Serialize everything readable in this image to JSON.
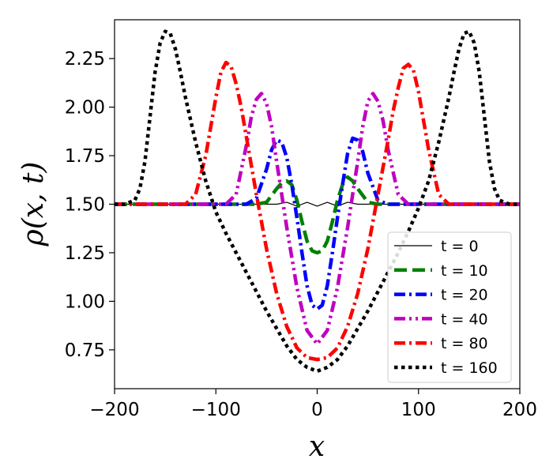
{
  "chart_data": {
    "type": "line",
    "xlabel": "x",
    "ylabel": "ρ(x, t)",
    "xlim": [
      -200,
      200
    ],
    "ylim": [
      0.55,
      2.45
    ],
    "xticks": [
      -200,
      -100,
      0,
      100,
      200
    ],
    "xtick_labels": [
      "−200",
      "−100",
      "0",
      "100",
      "200"
    ],
    "yticks": [
      0.75,
      1.0,
      1.25,
      1.5,
      1.75,
      2.0,
      2.25
    ],
    "ytick_labels": [
      "0.75",
      "1.00",
      "1.25",
      "1.50",
      "1.75",
      "2.00",
      "2.25"
    ],
    "grid": false,
    "legend_position": "lower-right",
    "series": [
      {
        "name": "t = 0",
        "color": "#000000",
        "style": "solid",
        "x": [
          -200,
          -160,
          -120,
          -80,
          -60,
          -40,
          -30,
          -20,
          -10,
          0,
          10,
          20,
          30,
          40,
          60,
          80,
          120,
          160,
          200
        ],
        "y": [
          1.5,
          1.5,
          1.5,
          1.5,
          1.5,
          1.5,
          1.51,
          1.49,
          1.51,
          1.49,
          1.51,
          1.49,
          1.51,
          1.5,
          1.5,
          1.5,
          1.5,
          1.5,
          1.5
        ]
      },
      {
        "name": "t = 10",
        "color": "#008000",
        "style": "dashed",
        "x": [
          -200,
          -100,
          -60,
          -50,
          -40,
          -35,
          -30,
          -25,
          -20,
          -15,
          -10,
          -5,
          0,
          5,
          10,
          15,
          20,
          25,
          30,
          35,
          40,
          50,
          60,
          100,
          200
        ],
        "y": [
          1.5,
          1.5,
          1.5,
          1.51,
          1.58,
          1.61,
          1.62,
          1.6,
          1.52,
          1.41,
          1.31,
          1.26,
          1.25,
          1.26,
          1.31,
          1.41,
          1.52,
          1.6,
          1.64,
          1.62,
          1.58,
          1.51,
          1.5,
          1.5,
          1.5
        ]
      },
      {
        "name": "t = 20",
        "color": "#0000ff",
        "style": "dashdot",
        "x": [
          -200,
          -100,
          -70,
          -60,
          -50,
          -45,
          -40,
          -35,
          -30,
          -25,
          -20,
          -15,
          -10,
          -5,
          0,
          5,
          10,
          15,
          20,
          25,
          30,
          35,
          40,
          45,
          50,
          60,
          70,
          100,
          200
        ],
        "y": [
          1.5,
          1.5,
          1.5,
          1.53,
          1.68,
          1.78,
          1.83,
          1.82,
          1.74,
          1.6,
          1.43,
          1.25,
          1.08,
          0.98,
          0.96,
          0.98,
          1.08,
          1.25,
          1.43,
          1.6,
          1.76,
          1.84,
          1.83,
          1.77,
          1.66,
          1.52,
          1.5,
          1.5,
          1.5
        ]
      },
      {
        "name": "t = 40",
        "color": "#c000c0",
        "style": "dashdotdot",
        "x": [
          -200,
          -110,
          -90,
          -80,
          -70,
          -65,
          -60,
          -55,
          -50,
          -45,
          -40,
          -30,
          -20,
          -10,
          0,
          10,
          20,
          30,
          40,
          45,
          50,
          55,
          60,
          65,
          70,
          80,
          90,
          110,
          200
        ],
        "y": [
          1.5,
          1.5,
          1.5,
          1.55,
          1.8,
          1.95,
          2.04,
          2.07,
          2.02,
          1.9,
          1.72,
          1.38,
          1.07,
          0.85,
          0.78,
          0.85,
          1.07,
          1.38,
          1.72,
          1.9,
          2.03,
          2.07,
          2.03,
          1.93,
          1.78,
          1.55,
          1.5,
          1.5,
          1.5
        ]
      },
      {
        "name": "t = 80",
        "color": "#ff0000",
        "style": "dashdot",
        "x": [
          -200,
          -150,
          -130,
          -120,
          -110,
          -100,
          -95,
          -90,
          -85,
          -80,
          -75,
          -70,
          -60,
          -50,
          -40,
          -30,
          -20,
          -10,
          0,
          10,
          20,
          30,
          40,
          50,
          60,
          70,
          75,
          80,
          85,
          90,
          95,
          100,
          110,
          120,
          130,
          150,
          200
        ],
        "y": [
          1.5,
          1.5,
          1.5,
          1.55,
          1.75,
          2.05,
          2.18,
          2.23,
          2.21,
          2.12,
          2.0,
          1.85,
          1.55,
          1.27,
          1.04,
          0.87,
          0.76,
          0.71,
          0.7,
          0.71,
          0.76,
          0.87,
          1.04,
          1.27,
          1.55,
          1.83,
          1.98,
          2.1,
          2.2,
          2.22,
          2.19,
          2.08,
          1.78,
          1.55,
          1.5,
          1.5,
          1.5
        ]
      },
      {
        "name": "t = 160",
        "color": "#000000",
        "style": "dotted",
        "x": [
          -200,
          -190,
          -180,
          -175,
          -170,
          -165,
          -160,
          -155,
          -150,
          -145,
          -140,
          -135,
          -130,
          -120,
          -110,
          -100,
          -90,
          -80,
          -70,
          -60,
          -50,
          -40,
          -30,
          -20,
          -10,
          0,
          10,
          20,
          30,
          40,
          50,
          60,
          70,
          80,
          90,
          100,
          110,
          120,
          130,
          135,
          140,
          145,
          150,
          155,
          160,
          165,
          170,
          175,
          180,
          190,
          200
        ],
        "y": [
          1.5,
          1.5,
          1.52,
          1.58,
          1.72,
          1.95,
          2.18,
          2.33,
          2.39,
          2.38,
          2.3,
          2.18,
          2.05,
          1.82,
          1.62,
          1.46,
          1.35,
          1.25,
          1.15,
          1.05,
          0.95,
          0.86,
          0.77,
          0.7,
          0.66,
          0.64,
          0.66,
          0.7,
          0.77,
          0.86,
          0.95,
          1.05,
          1.15,
          1.25,
          1.36,
          1.48,
          1.62,
          1.82,
          2.05,
          2.18,
          2.3,
          2.38,
          2.39,
          2.33,
          2.18,
          1.95,
          1.72,
          1.58,
          1.52,
          1.5,
          1.5
        ]
      }
    ]
  }
}
